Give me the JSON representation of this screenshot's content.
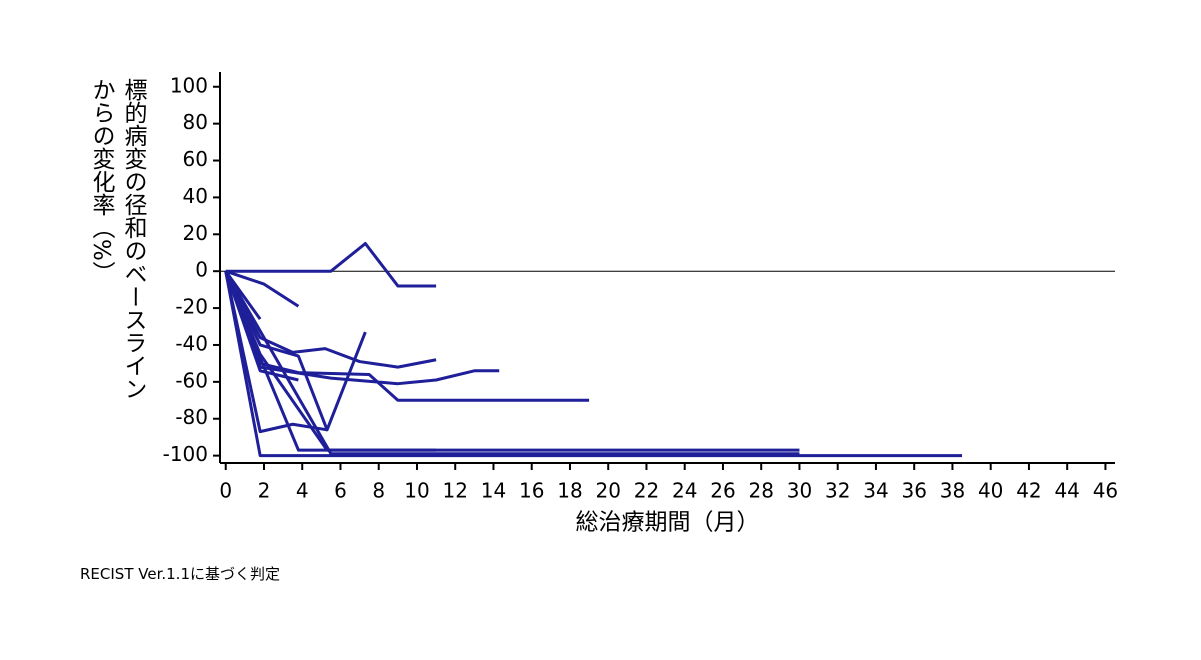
{
  "chart_data": {
    "type": "line",
    "ylabel": [
      "標的病変の径和のベースライン",
      "からの変化率（%）"
    ],
    "xlabel": "総治療期間（月）",
    "footnote": "RECIST Ver.1.1に基づく判定",
    "xlim": [
      -0.3,
      46.5
    ],
    "xticks": [
      0,
      2,
      4,
      6,
      8,
      10,
      12,
      14,
      16,
      18,
      20,
      22,
      24,
      26,
      28,
      30,
      32,
      34,
      36,
      38,
      40,
      42,
      44,
      46
    ],
    "ylim": [
      -104,
      108
    ],
    "yticks": [
      -100,
      -80,
      -60,
      -40,
      -20,
      0,
      20,
      40,
      60,
      80,
      100
    ],
    "reference_line": 0,
    "color": "#1f1f99",
    "series": [
      {
        "x": [
          0,
          5.5,
          7.3,
          9,
          11
        ],
        "values": [
          0,
          0,
          15,
          -8,
          -8
        ]
      },
      {
        "x": [
          0,
          2,
          3.8
        ],
        "values": [
          0,
          -7,
          -19
        ]
      },
      {
        "x": [
          0,
          1.8
        ],
        "values": [
          0,
          -26
        ]
      },
      {
        "x": [
          0,
          1.8,
          3.5,
          5.2,
          7,
          9,
          11
        ],
        "values": [
          0,
          -36,
          -44,
          -42,
          -49,
          -52,
          -48
        ]
      },
      {
        "x": [
          0,
          1.8,
          3.8,
          7.5,
          9,
          19
        ],
        "values": [
          0,
          -50,
          -55,
          -56,
          -70,
          -70
        ]
      },
      {
        "x": [
          0,
          1.8,
          5.5,
          9,
          11,
          13,
          14.3
        ],
        "values": [
          0,
          -52,
          -58,
          -61,
          -59,
          -54,
          -54
        ]
      },
      {
        "x": [
          0,
          1.8,
          3.8
        ],
        "values": [
          0,
          -54,
          -59
        ]
      },
      {
        "x": [
          0,
          1.8,
          3.8,
          5.3,
          7.3
        ],
        "values": [
          0,
          -40,
          -46,
          -86,
          -33
        ]
      },
      {
        "x": [
          0,
          1.8,
          3.5,
          5.3
        ],
        "values": [
          0,
          -87,
          -83,
          -86
        ]
      },
      {
        "x": [
          0,
          1.8,
          3.8,
          30
        ],
        "values": [
          0,
          -47,
          -97,
          -97
        ]
      },
      {
        "x": [
          0,
          1.8,
          38.5
        ],
        "values": [
          0,
          -100,
          -100
        ]
      },
      {
        "x": [
          0,
          1.8,
          5.3,
          11
        ],
        "values": [
          0,
          -45,
          -97,
          -97
        ]
      },
      {
        "x": [
          0,
          5.5,
          30
        ],
        "values": [
          0,
          -99,
          -99
        ]
      }
    ]
  }
}
